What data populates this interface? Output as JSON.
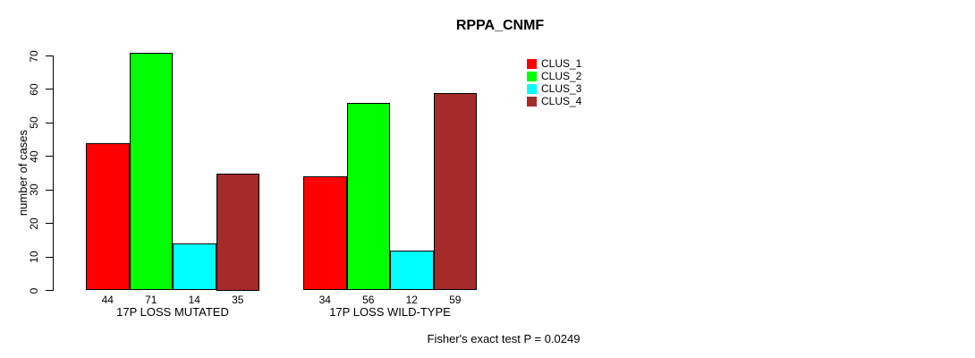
{
  "chart_data": {
    "type": "bar",
    "title": "RPPA_CNMF",
    "ylabel": "number of cases",
    "ylim": [
      0,
      70
    ],
    "yticks": [
      0,
      10,
      20,
      30,
      40,
      50,
      60,
      70
    ],
    "grid": false,
    "legend_position": "top-right-outside",
    "categories": [
      "17P LOSS MUTATED",
      "17P LOSS WILD-TYPE"
    ],
    "series": [
      {
        "name": "CLUS_1",
        "color": "#ff0000",
        "values": [
          44,
          34
        ]
      },
      {
        "name": "CLUS_2",
        "color": "#00ff00",
        "values": [
          71,
          56
        ]
      },
      {
        "name": "CLUS_3",
        "color": "#00ffff",
        "values": [
          14,
          12
        ]
      },
      {
        "name": "CLUS_4",
        "color": "#a52a2a",
        "values": [
          35,
          59
        ]
      }
    ],
    "bar_value_labels": [
      [
        "44",
        "71",
        "14",
        "35"
      ],
      [
        "34",
        "56",
        "12",
        "59"
      ]
    ],
    "annotation": "Fisher's exact test P = 0.0249"
  }
}
